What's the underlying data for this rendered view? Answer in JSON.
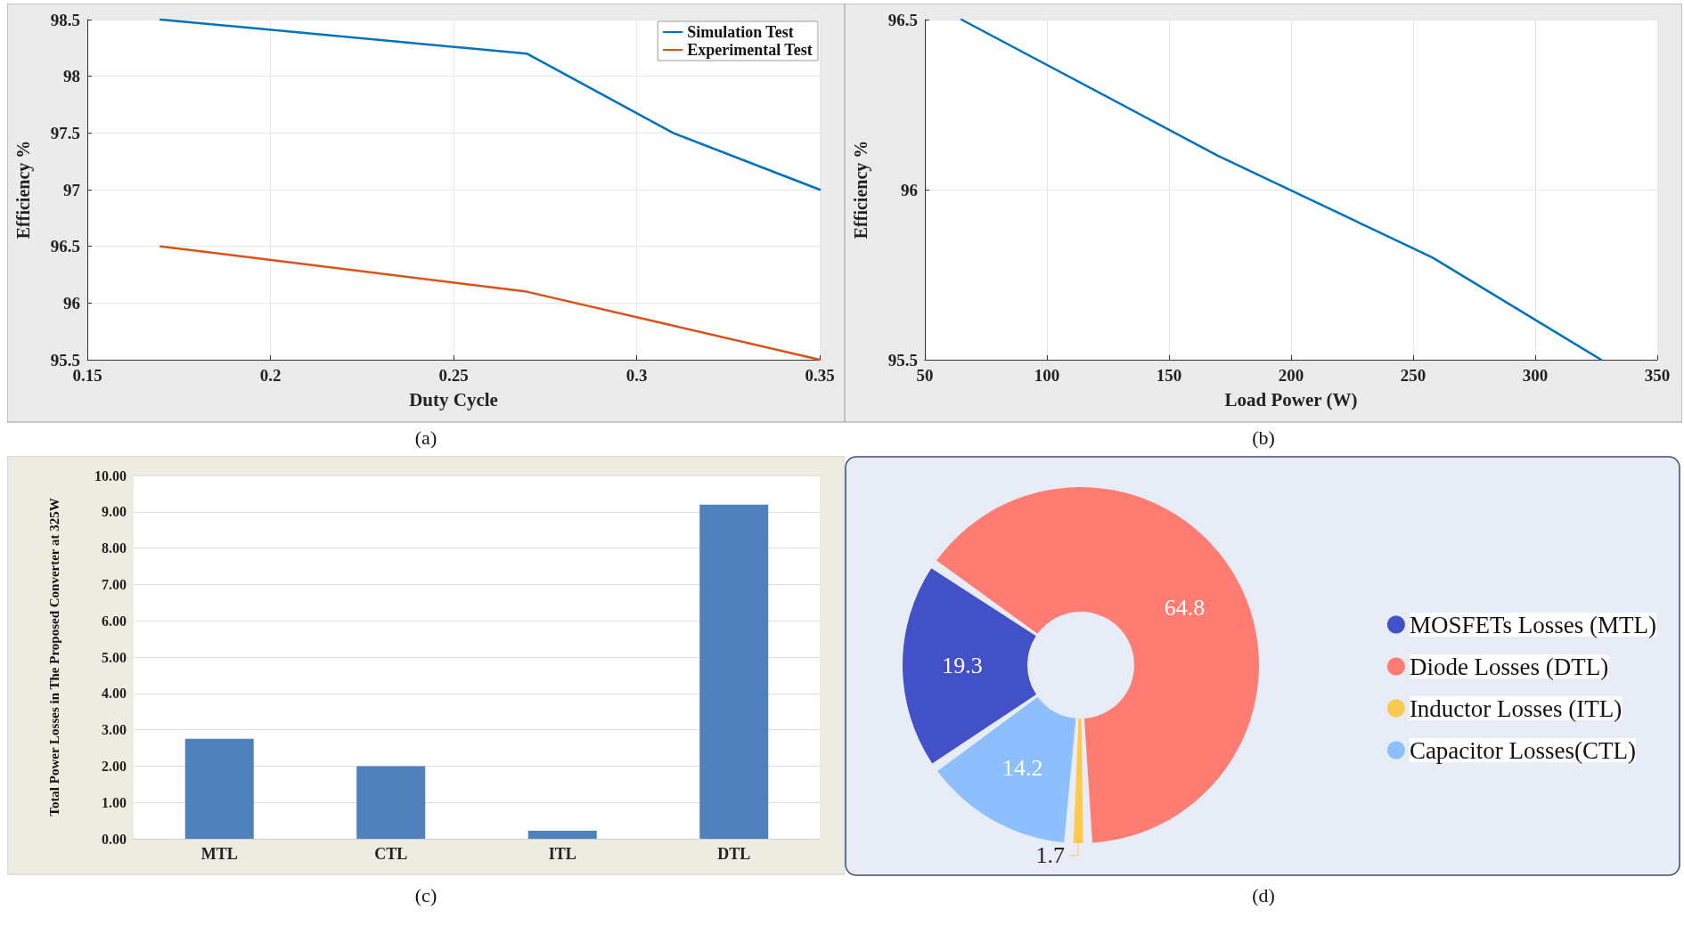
{
  "chart_data": [
    {
      "type": "line",
      "xlabel": "Duty Cycle",
      "ylabel": "Efficiency %",
      "annotations": [
        "(a)"
      ],
      "series": [
        {
          "name": "Simulation Test",
          "color": "#0072bd",
          "x": [
            0.17,
            0.27,
            0.31,
            0.35
          ],
          "values": [
            98.5,
            98.2,
            97.5,
            97.0
          ]
        },
        {
          "name": "Experimental Test",
          "color": "#d95319",
          "x": [
            0.17,
            0.27,
            0.31,
            0.35
          ],
          "values": [
            96.5,
            96.1,
            95.8,
            95.5
          ]
        }
      ],
      "xlim": [
        0.15,
        0.35
      ],
      "xticks": [
        0.15,
        0.2,
        0.25,
        0.3,
        0.35
      ],
      "ylim": [
        95.5,
        98.5
      ],
      "yticks": [
        95.5,
        96,
        96.5,
        97,
        97.5,
        98,
        98.5
      ],
      "grid": true,
      "legend": "top right",
      "marker": "none",
      "line_style": "solid"
    },
    {
      "type": "line",
      "xlabel": "Load Power (W)",
      "ylabel": "Efficiency %",
      "annotations": [
        "(b)"
      ],
      "series": [
        {
          "color": "#0072bd",
          "x": [
            65,
            170,
            258,
            327
          ],
          "values": [
            96.5,
            96.1,
            95.8,
            95.5
          ]
        }
      ],
      "xlim": [
        50,
        350
      ],
      "xticks": [
        50,
        100,
        150,
        200,
        250,
        300,
        350
      ],
      "ylim": [
        95.5,
        96.5
      ],
      "yticks": [
        95.5,
        96,
        96.5
      ],
      "grid": true,
      "marker": "none",
      "line_style": "solid"
    },
    {
      "type": "bar",
      "ylabel": "Total Power Losses in The Proposed Converter at 325W",
      "annotations": [
        "(c)"
      ],
      "categories": [
        "MTL",
        "CTL",
        "ITL",
        "DTL"
      ],
      "values": [
        2.75,
        2.0,
        0.22,
        9.2
      ],
      "color": "#4f81bd",
      "ylim": [
        0,
        10
      ],
      "yticks": [
        {
          "value": 0,
          "label": "0.00"
        },
        {
          "value": 1,
          "label": "1.00"
        },
        {
          "value": 2,
          "label": "2.00"
        },
        {
          "value": 3,
          "label": "3.00"
        },
        {
          "value": 4,
          "label": "4.00"
        },
        {
          "value": 5,
          "label": "5.00"
        },
        {
          "value": 6,
          "label": "6.00"
        },
        {
          "value": 7,
          "label": "7.00"
        },
        {
          "value": 8,
          "label": "8.00"
        },
        {
          "value": 9,
          "label": "9.00"
        },
        {
          "value": 10,
          "label": "10.00"
        }
      ],
      "grid": "y"
    },
    {
      "type": "donut",
      "annotations": [
        "(d)"
      ],
      "categories": [
        "MOSFETs Losses (MTL)",
        "Diode Losses (DTL)",
        "Inductor Losses (ITL)",
        "Capacitor Losses(CTL)"
      ],
      "values": [
        19.3,
        64.8,
        1.7,
        14.2
      ],
      "colors": [
        "#4351c8",
        "#fe7c72",
        "#fdc94f",
        "#8cbffc"
      ],
      "data_labels": true,
      "legend": "right"
    }
  ]
}
